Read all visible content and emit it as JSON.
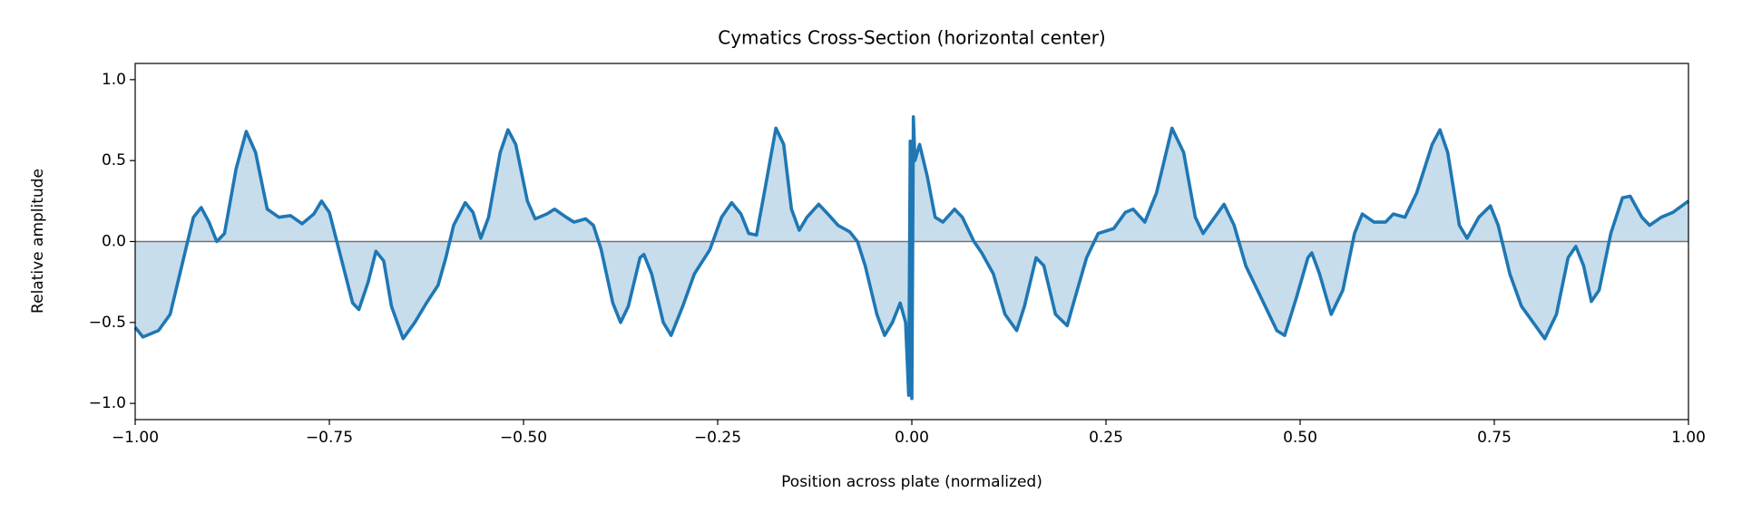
{
  "chart_data": {
    "type": "area-line",
    "title": "Cymatics Cross-Section (horizontal center)",
    "x_label": "Position across plate (normalized)",
    "y_label": "Relative amplitude",
    "color": "#1f77b4",
    "xlim": [
      -1,
      1
    ],
    "ylim": [
      -1.1,
      1.1
    ],
    "xticks": [
      {
        "value": -1,
        "label": "−1.00"
      },
      {
        "value": -0.75,
        "label": "−0.75"
      },
      {
        "value": -0.5,
        "label": "−0.50"
      },
      {
        "value": -0.25,
        "label": "−0.25"
      },
      {
        "value": 0,
        "label": "0.00"
      },
      {
        "value": 0.25,
        "label": "0.25"
      },
      {
        "value": 0.5,
        "label": "0.50"
      },
      {
        "value": 0.75,
        "label": "0.75"
      },
      {
        "value": 1,
        "label": "1.00"
      }
    ],
    "yticks": [
      {
        "value": -1,
        "label": "−1.0"
      },
      {
        "value": -0.5,
        "label": "−0.5"
      },
      {
        "value": 0,
        "label": "0.0"
      },
      {
        "value": 0.5,
        "label": "0.5"
      },
      {
        "value": 1,
        "label": "1.0"
      }
    ],
    "x": [
      -1.0,
      -0.99,
      -0.97,
      -0.955,
      -0.94,
      -0.925,
      -0.915,
      -0.905,
      -0.895,
      -0.885,
      -0.87,
      -0.857,
      -0.845,
      -0.83,
      -0.815,
      -0.8,
      -0.785,
      -0.77,
      -0.76,
      -0.75,
      -0.735,
      -0.72,
      -0.712,
      -0.7,
      -0.69,
      -0.68,
      -0.67,
      -0.655,
      -0.64,
      -0.625,
      -0.61,
      -0.6,
      -0.59,
      -0.575,
      -0.565,
      -0.555,
      -0.545,
      -0.53,
      -0.52,
      -0.51,
      -0.495,
      -0.485,
      -0.47,
      -0.46,
      -0.445,
      -0.435,
      -0.42,
      -0.41,
      -0.4,
      -0.385,
      -0.375,
      -0.365,
      -0.35,
      -0.345,
      -0.335,
      -0.32,
      -0.31,
      -0.295,
      -0.28,
      -0.26,
      -0.245,
      -0.232,
      -0.22,
      -0.21,
      -0.2,
      -0.19,
      -0.175,
      -0.165,
      -0.155,
      -0.145,
      -0.135,
      -0.12,
      -0.11,
      -0.095,
      -0.08,
      -0.07,
      -0.06,
      -0.045,
      -0.035,
      -0.025,
      -0.015,
      -0.008,
      -0.004,
      -0.002,
      0.0,
      0.002,
      0.004,
      0.01,
      0.02,
      0.03,
      0.04,
      0.055,
      0.065,
      0.08,
      0.09,
      0.105,
      0.12,
      0.135,
      0.145,
      0.16,
      0.17,
      0.185,
      0.2,
      0.21,
      0.225,
      0.24,
      0.26,
      0.275,
      0.285,
      0.3,
      0.315,
      0.335,
      0.35,
      0.365,
      0.375,
      0.39,
      0.402,
      0.415,
      0.43,
      0.45,
      0.47,
      0.48,
      0.495,
      0.51,
      0.515,
      0.525,
      0.54,
      0.555,
      0.57,
      0.58,
      0.595,
      0.61,
      0.62,
      0.635,
      0.65,
      0.67,
      0.68,
      0.69,
      0.705,
      0.715,
      0.73,
      0.745,
      0.755,
      0.77,
      0.785,
      0.8,
      0.815,
      0.83,
      0.845,
      0.855,
      0.865,
      0.875,
      0.885,
      0.9,
      0.915,
      0.925,
      0.94,
      0.95,
      0.965,
      0.98,
      1.0
    ],
    "values": [
      -0.53,
      -0.59,
      -0.55,
      -0.45,
      -0.15,
      0.15,
      0.21,
      0.12,
      0.0,
      0.05,
      0.45,
      0.68,
      0.55,
      0.2,
      0.15,
      0.16,
      0.11,
      0.17,
      0.25,
      0.18,
      -0.1,
      -0.38,
      -0.42,
      -0.25,
      -0.06,
      -0.12,
      -0.4,
      -0.6,
      -0.5,
      -0.38,
      -0.27,
      -0.1,
      0.1,
      0.24,
      0.18,
      0.02,
      0.15,
      0.55,
      0.69,
      0.6,
      0.25,
      0.14,
      0.17,
      0.2,
      0.15,
      0.12,
      0.14,
      0.1,
      -0.05,
      -0.38,
      -0.5,
      -0.4,
      -0.1,
      -0.08,
      -0.2,
      -0.5,
      -0.58,
      -0.4,
      -0.2,
      -0.05,
      0.15,
      0.24,
      0.17,
      0.05,
      0.04,
      0.3,
      0.7,
      0.6,
      0.2,
      0.07,
      0.15,
      0.23,
      0.18,
      0.1,
      0.06,
      0.0,
      -0.15,
      -0.45,
      -0.58,
      -0.5,
      -0.38,
      -0.5,
      -0.95,
      0.62,
      -0.97,
      0.77,
      0.5,
      0.6,
      0.4,
      0.15,
      0.12,
      0.2,
      0.15,
      0.0,
      -0.07,
      -0.2,
      -0.45,
      -0.55,
      -0.4,
      -0.1,
      -0.15,
      -0.45,
      -0.52,
      -0.35,
      -0.1,
      0.05,
      0.08,
      0.18,
      0.2,
      0.12,
      0.3,
      0.7,
      0.55,
      0.15,
      0.05,
      0.15,
      0.23,
      0.1,
      -0.15,
      -0.35,
      -0.55,
      -0.58,
      -0.35,
      -0.1,
      -0.07,
      -0.2,
      -0.45,
      -0.3,
      0.05,
      0.17,
      0.12,
      0.12,
      0.17,
      0.15,
      0.3,
      0.6,
      0.69,
      0.55,
      0.1,
      0.02,
      0.15,
      0.22,
      0.1,
      -0.2,
      -0.4,
      -0.5,
      -0.6,
      -0.45,
      -0.1,
      -0.03,
      -0.15,
      -0.37,
      -0.3,
      0.05,
      0.27,
      0.28,
      0.15,
      0.1,
      0.15,
      0.18,
      0.25
    ]
  }
}
